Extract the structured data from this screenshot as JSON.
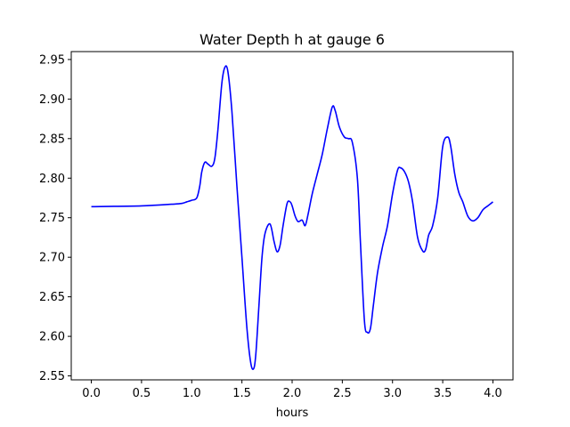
{
  "chart_data": {
    "type": "line",
    "title": "Water Depth h at gauge 6",
    "xlabel": "hours",
    "ylabel": "",
    "xlim": [
      -0.2,
      4.2
    ],
    "ylim": [
      2.545,
      2.96
    ],
    "xticks": [
      0.0,
      0.5,
      1.0,
      1.5,
      2.0,
      2.5,
      3.0,
      3.5,
      4.0
    ],
    "xtick_labels": [
      "0.0",
      "0.5",
      "1.0",
      "1.5",
      "2.0",
      "2.5",
      "3.0",
      "3.5",
      "4.0"
    ],
    "yticks": [
      2.55,
      2.6,
      2.65,
      2.7,
      2.75,
      2.8,
      2.85,
      2.9,
      2.95
    ],
    "ytick_labels": [
      "2.55",
      "2.60",
      "2.65",
      "2.70",
      "2.75",
      "2.80",
      "2.85",
      "2.90",
      "2.95"
    ],
    "grid": false,
    "series": [
      {
        "color": "#0000ff",
        "x": [
          0.0,
          0.5,
          0.8,
          0.9,
          0.95,
          1.0,
          1.05,
          1.08,
          1.1,
          1.13,
          1.16,
          1.2,
          1.23,
          1.26,
          1.3,
          1.33,
          1.36,
          1.4,
          1.45,
          1.5,
          1.55,
          1.59,
          1.62,
          1.64,
          1.67,
          1.7,
          1.73,
          1.78,
          1.82,
          1.85,
          1.88,
          1.91,
          1.95,
          1.98,
          2.0,
          2.03,
          2.06,
          2.1,
          2.13,
          2.16,
          2.2,
          2.25,
          2.3,
          2.35,
          2.4,
          2.43,
          2.47,
          2.52,
          2.56,
          2.6,
          2.65,
          2.68,
          2.72,
          2.75,
          2.78,
          2.81,
          2.85,
          2.9,
          2.95,
          3.0,
          3.05,
          3.08,
          3.12,
          3.16,
          3.2,
          3.25,
          3.3,
          3.33,
          3.36,
          3.4,
          3.45,
          3.5,
          3.55,
          3.58,
          3.62,
          3.66,
          3.7,
          3.75,
          3.8,
          3.85,
          3.9,
          3.95,
          4.0
        ],
        "y": [
          2.764,
          2.765,
          2.767,
          2.768,
          2.77,
          2.772,
          2.775,
          2.79,
          2.808,
          2.82,
          2.818,
          2.815,
          2.825,
          2.86,
          2.92,
          2.94,
          2.935,
          2.885,
          2.79,
          2.7,
          2.61,
          2.565,
          2.56,
          2.58,
          2.64,
          2.7,
          2.73,
          2.742,
          2.72,
          2.707,
          2.715,
          2.74,
          2.768,
          2.77,
          2.765,
          2.752,
          2.745,
          2.747,
          2.74,
          2.755,
          2.78,
          2.805,
          2.83,
          2.862,
          2.89,
          2.885,
          2.865,
          2.852,
          2.85,
          2.845,
          2.8,
          2.72,
          2.62,
          2.605,
          2.61,
          2.64,
          2.68,
          2.713,
          2.74,
          2.78,
          2.81,
          2.813,
          2.808,
          2.795,
          2.77,
          2.725,
          2.708,
          2.71,
          2.728,
          2.74,
          2.775,
          2.84,
          2.852,
          2.84,
          2.805,
          2.782,
          2.77,
          2.752,
          2.746,
          2.75,
          2.76,
          2.765,
          2.77
        ]
      }
    ]
  }
}
